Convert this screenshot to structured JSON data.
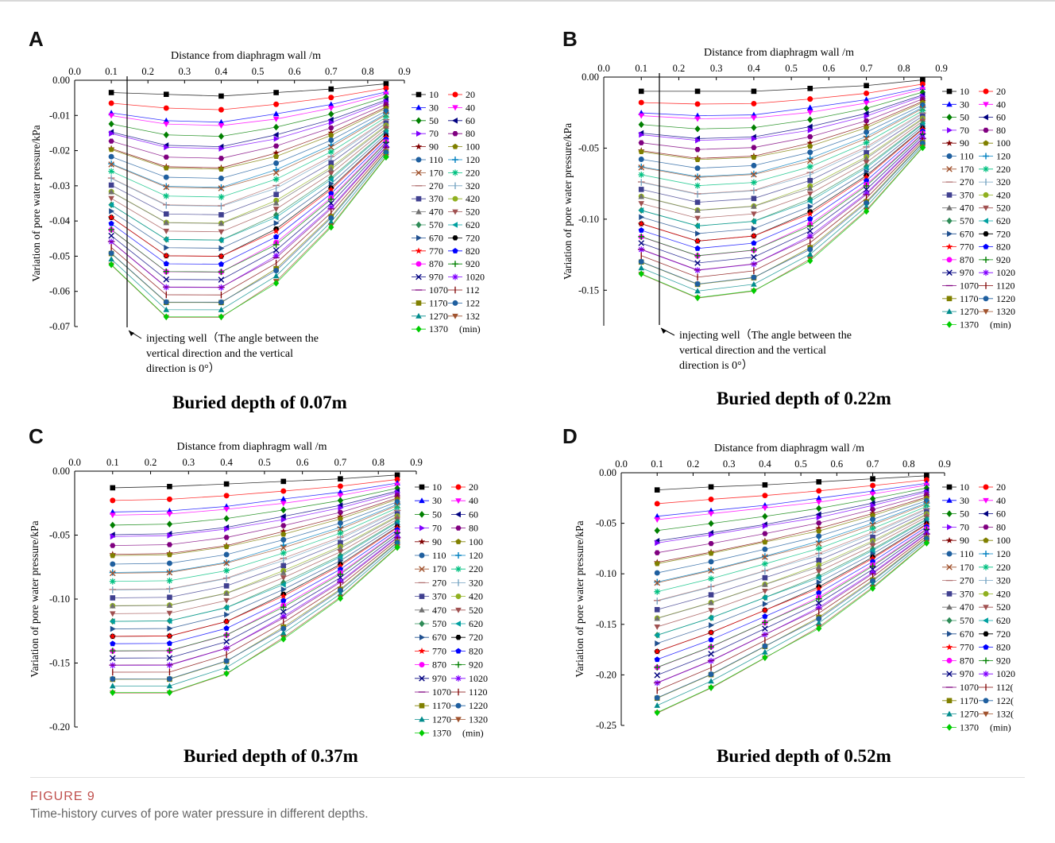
{
  "figure": {
    "label": "FIGURE 9",
    "caption": "Time-history curves of pore water pressure in different depths."
  },
  "legend_unit": "(min)",
  "annotation": {
    "line1": "injecting well（The angle between the",
    "line2": "vertical direction and the vertical",
    "line3": "direction is 0°）"
  },
  "chart_data": [
    {
      "panel": "A",
      "type": "line",
      "title": "Buried depth of 0.07m",
      "xlabel": "Distance from diaphragm wall /m",
      "ylabel": "Variation of pore water pressure/kPa",
      "xlim": [
        0.0,
        0.9
      ],
      "ylim": [
        -0.07,
        0.0
      ],
      "x_ticks": [
        "0.0",
        "0.1",
        "0.2",
        "0.3",
        "0.4",
        "0.5",
        "0.6",
        "0.7",
        "0.8",
        "0.9"
      ],
      "y_ticks": [
        "0.00",
        "-0.01",
        "-0.02",
        "-0.03",
        "-0.04",
        "-0.05",
        "-0.06",
        "-0.07"
      ],
      "x": [
        0.1,
        0.25,
        0.4,
        0.55,
        0.7,
        0.85
      ],
      "first_curve": [
        -0.0035,
        -0.004,
        -0.0045,
        -0.0035,
        -0.0025,
        -0.001
      ],
      "last_curve": [
        -0.053,
        -0.068,
        -0.068,
        -0.058,
        -0.042,
        -0.022
      ],
      "legend": [
        "10",
        "20",
        "30",
        "40",
        "50",
        "60",
        "70",
        "80",
        "90",
        "100",
        "110",
        "120",
        "170",
        "220",
        "270",
        "320",
        "370",
        "420",
        "470",
        "520",
        "570",
        "620",
        "670",
        "720",
        "770",
        "820",
        "870",
        "920",
        "970",
        "1020",
        "1070",
        "112",
        "1170",
        "122",
        "1270",
        "132",
        "1370"
      ],
      "legend_placement": "right",
      "has_annotation": true,
      "grid": false
    },
    {
      "panel": "B",
      "type": "line",
      "title": "Buried depth of 0.22m",
      "xlabel": "Distance from diaphragm wall /m",
      "ylabel": "Variation of pore water pressure/kPa",
      "xlim": [
        0.0,
        0.9
      ],
      "ylim": [
        -0.175,
        0.0
      ],
      "x_ticks": [
        "0.0",
        "0.1",
        "0.2",
        "0.3",
        "0.4",
        "0.5",
        "0.6",
        "0.7",
        "0.8",
        "0.9"
      ],
      "y_ticks": [
        "0.00",
        "-0.05",
        "-0.10",
        "-0.15"
      ],
      "x": [
        0.1,
        0.25,
        0.4,
        0.55,
        0.7,
        0.85
      ],
      "first_curve": [
        -0.01,
        -0.01,
        -0.01,
        -0.008,
        -0.006,
        -0.002
      ],
      "last_curve": [
        -0.14,
        -0.157,
        -0.152,
        -0.13,
        -0.095,
        -0.05
      ],
      "legend": [
        "10",
        "20",
        "30",
        "40",
        "50",
        "60",
        "70",
        "80",
        "90",
        "100",
        "110",
        "120",
        "170",
        "220",
        "270",
        "320",
        "370",
        "420",
        "470",
        "520",
        "570",
        "620",
        "670",
        "720",
        "770",
        "820",
        "870",
        "920",
        "970",
        "1020",
        "1070",
        "1120",
        "1170",
        "1220",
        "1270",
        "1320",
        "1370"
      ],
      "legend_placement": "right",
      "has_annotation": true,
      "grid": false
    },
    {
      "panel": "C",
      "type": "line",
      "title": "Buried depth of 0.37m",
      "xlabel": "Distance from diaphragm wall /m",
      "ylabel": "Variation of pore water pressure/kPa",
      "xlim": [
        0.0,
        0.9
      ],
      "ylim": [
        -0.2,
        0.0
      ],
      "x_ticks": [
        "0.0",
        "0.1",
        "0.2",
        "0.3",
        "0.4",
        "0.5",
        "0.6",
        "0.7",
        "0.8",
        "0.9"
      ],
      "y_ticks": [
        "0.00",
        "-0.05",
        "-0.10",
        "-0.15",
        "-0.20"
      ],
      "x": [
        0.1,
        0.25,
        0.4,
        0.55,
        0.7,
        0.85
      ],
      "first_curve": [
        -0.013,
        -0.012,
        -0.01,
        -0.008,
        -0.006,
        -0.003
      ],
      "last_curve": [
        -0.175,
        -0.175,
        -0.16,
        -0.132,
        -0.1,
        -0.06
      ],
      "legend": [
        "10",
        "20",
        "30",
        "40",
        "50",
        "60",
        "70",
        "80",
        "90",
        "100",
        "110",
        "120",
        "170",
        "220",
        "270",
        "320",
        "370",
        "420",
        "470",
        "520",
        "570",
        "620",
        "670",
        "720",
        "770",
        "820",
        "870",
        "920",
        "970",
        "1020",
        "1070",
        "1120",
        "1170",
        "1220",
        "1270",
        "1320",
        "1370"
      ],
      "legend_placement": "right",
      "has_annotation": false,
      "grid": false
    },
    {
      "panel": "D",
      "type": "line",
      "title": "Buried depth of 0.52m",
      "xlabel": "Distance from diaphragm wall /m",
      "ylabel": "Variation of pore water pressure/kPa",
      "xlim": [
        0.0,
        0.9
      ],
      "ylim": [
        -0.25,
        0.0
      ],
      "x_ticks": [
        "0.0",
        "0.1",
        "0.2",
        "0.3",
        "0.4",
        "0.5",
        "0.6",
        "0.7",
        "0.8",
        "0.9"
      ],
      "y_ticks": [
        "0.00",
        "-0.05",
        "-0.10",
        "-0.15",
        "-0.20",
        "-0.25"
      ],
      "x": [
        0.1,
        0.25,
        0.4,
        0.55,
        0.7,
        0.85
      ],
      "first_curve": [
        -0.017,
        -0.014,
        -0.012,
        -0.009,
        -0.006,
        -0.003
      ],
      "last_curve": [
        -0.24,
        -0.215,
        -0.185,
        -0.155,
        -0.115,
        -0.07
      ],
      "legend": [
        "10",
        "20",
        "30",
        "40",
        "50",
        "60",
        "70",
        "80",
        "90",
        "100",
        "110",
        "120",
        "170",
        "220",
        "270",
        "320",
        "370",
        "420",
        "470",
        "520",
        "570",
        "620",
        "670",
        "720",
        "770",
        "820",
        "870",
        "920",
        "970",
        "1020",
        "1070",
        "112(",
        "1170",
        "122(",
        "1270",
        "132(",
        "1370"
      ],
      "legend_placement": "right",
      "has_annotation": false,
      "grid": false
    }
  ],
  "series_style": [
    {
      "color": "#000000",
      "marker": "square"
    },
    {
      "color": "#ff0000",
      "marker": "circle"
    },
    {
      "color": "#0000ff",
      "marker": "triangle-up"
    },
    {
      "color": "#ff00ff",
      "marker": "triangle-down"
    },
    {
      "color": "#008000",
      "marker": "diamond"
    },
    {
      "color": "#000080",
      "marker": "triangle-left"
    },
    {
      "color": "#8000ff",
      "marker": "triangle-right"
    },
    {
      "color": "#800080",
      "marker": "hexagon"
    },
    {
      "color": "#800000",
      "marker": "star"
    },
    {
      "color": "#808000",
      "marker": "pentagon"
    },
    {
      "color": "#1f5f9f",
      "marker": "circle"
    },
    {
      "color": "#0080c0",
      "marker": "cross"
    },
    {
      "color": "#a0522d",
      "marker": "x"
    },
    {
      "color": "#00c080",
      "marker": "asterisk"
    },
    {
      "color": "#b07070",
      "marker": "dash"
    },
    {
      "color": "#70a0c0",
      "marker": "bar"
    },
    {
      "color": "#404090",
      "marker": "square"
    },
    {
      "color": "#90b020",
      "marker": "circle"
    },
    {
      "color": "#707070",
      "marker": "triangle-up"
    },
    {
      "color": "#a05050",
      "marker": "triangle-down"
    },
    {
      "color": "#2e8b57",
      "marker": "diamond"
    },
    {
      "color": "#00a0a0",
      "marker": "triangle-left"
    },
    {
      "color": "#1f4f8f",
      "marker": "triangle-right"
    },
    {
      "color": "#000000",
      "marker": "hexagon"
    },
    {
      "color": "#ff0000",
      "marker": "star"
    },
    {
      "color": "#0000ff",
      "marker": "pentagon"
    },
    {
      "color": "#ff00ff",
      "marker": "circle"
    },
    {
      "color": "#008000",
      "marker": "cross"
    },
    {
      "color": "#000080",
      "marker": "x"
    },
    {
      "color": "#8000ff",
      "marker": "asterisk"
    },
    {
      "color": "#800080",
      "marker": "dash"
    },
    {
      "color": "#800000",
      "marker": "bar"
    },
    {
      "color": "#808000",
      "marker": "square"
    },
    {
      "color": "#1f5f9f",
      "marker": "circle"
    },
    {
      "color": "#008b8b",
      "marker": "triangle-up"
    },
    {
      "color": "#a0522d",
      "marker": "triangle-down"
    },
    {
      "color": "#00cc00",
      "marker": "diamond"
    }
  ]
}
